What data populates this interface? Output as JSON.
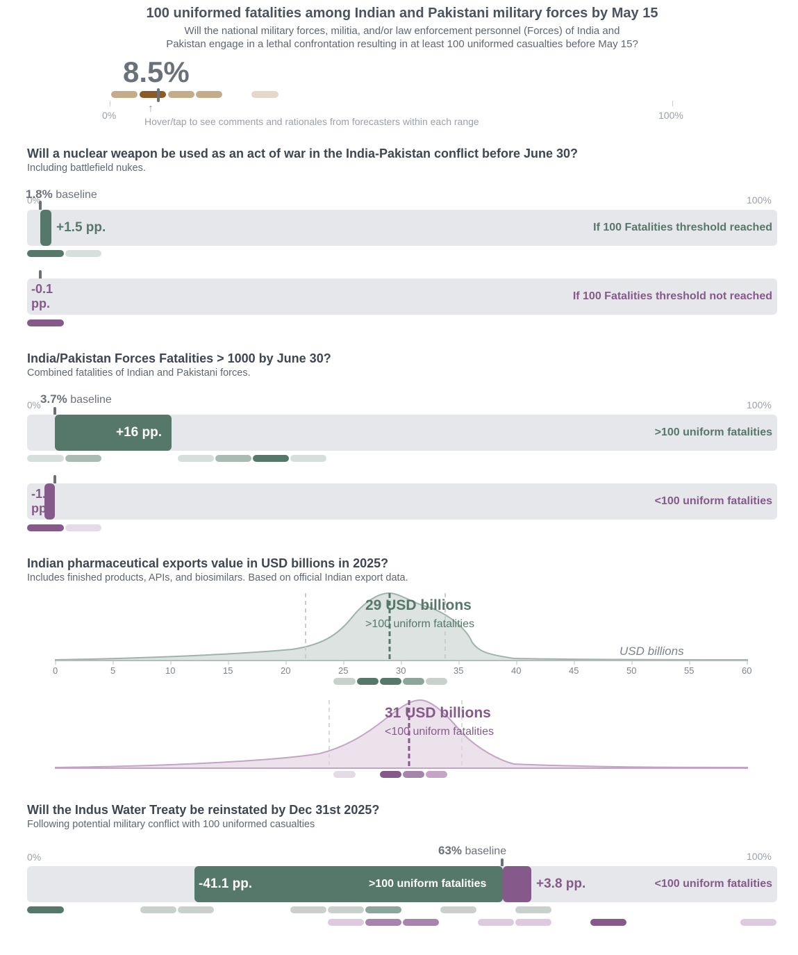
{
  "header": {
    "title": "100 uniformed fatalities among Indian and Pakistani military forces by May 15",
    "subtitle_line1": "Will the national military forces, militia, and/or law enforcement personnel (Forces) of India and",
    "subtitle_line2": "Pakistan engage in a lethal confrontation resulting in at least 100 uniformed casualties before May 15?",
    "probability": "8.5%",
    "probability_value": 8.5,
    "axis_min": "0%",
    "axis_max": "100%",
    "hint": "Hover/tap to see comments and rationales from forecasters within each range"
  },
  "q1": {
    "title": "Will a nuclear weapon be used as an act of war in the India-Pakistan conflict before June 30?",
    "subtitle": "Including battlefield nukes.",
    "baseline_value": "1.8%",
    "baseline_word": "baseline",
    "axis_min": "0%",
    "axis_max": "100%",
    "yes": {
      "delta": "+1.5 pp.",
      "label": "If 100 Fatalities threshold reached",
      "value_pct": 3.3
    },
    "no": {
      "delta_line1": "-0.1",
      "delta_line2": "pp.",
      "label": "If 100 Fatalities threshold not reached",
      "value_pct": 1.7
    }
  },
  "q2": {
    "title": "India/Pakistan Forces Fatalities > 1000 by June 30?",
    "subtitle": "Combined fatalities of Indian and Pakistani forces.",
    "baseline_value": "3.7%",
    "baseline_word": "baseline",
    "axis_min": "0%",
    "axis_max": "100%",
    "yes": {
      "delta": "+16 pp.",
      "label": ">100 uniform fatalities",
      "value_pct": 19.7
    },
    "no": {
      "delta_line1": "-1.4",
      "delta_line2": "pp.",
      "label": "<100 uniform fatalities",
      "value_pct": 2.3
    }
  },
  "q3": {
    "title": "Indian pharmaceutical exports value in USD billions in 2025?",
    "subtitle": "Includes finished products, APIs, and biosimilars. Based on official Indian export data.",
    "axis_title": "USD billions",
    "ticks": [
      "0",
      "5",
      "10",
      "15",
      "20",
      "25",
      "30",
      "35",
      "40",
      "45",
      "50",
      "55",
      "60"
    ],
    "yes": {
      "median_label": "29 USD billions",
      "cond_label": ">100 uniform fatalities",
      "median": 29
    },
    "no": {
      "median_label": "31 USD billions",
      "cond_label": "<100 uniform fatalities",
      "median": 31
    }
  },
  "q4": {
    "title": "Will the Indus Water Treaty be reinstated by Dec 31st 2025?",
    "subtitle": "Following potential military conflict with 100 uniformed casualties",
    "baseline_value": "63%",
    "baseline_word": "baseline",
    "axis_min": "0%",
    "axis_max": "100%",
    "yes": {
      "delta": "-41.1 pp.",
      "label": ">100 uniform fatalities",
      "value_pct": 21.9
    },
    "no": {
      "delta": "+3.8 pp.",
      "label": "<100 uniform fatalities",
      "value_pct": 66.8
    }
  },
  "colors": {
    "green": "#55786a",
    "purple": "#855a8a",
    "track": "#e6e7ea",
    "tan": "#c4ab8a",
    "brown": "#8b5a25"
  }
}
